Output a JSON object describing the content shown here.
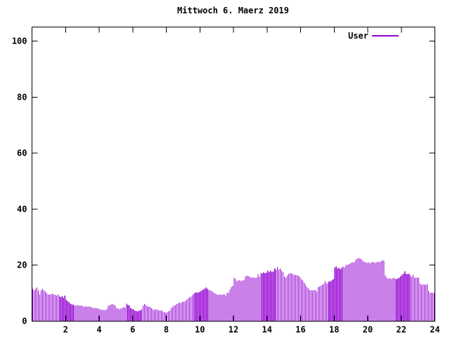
{
  "title": "Mittwoch 6. Maerz 2019",
  "legend": {
    "label": "User"
  },
  "chart_data": {
    "type": "bar",
    "style": "impulses",
    "title": "Mittwoch 6. Maerz 2019",
    "xlabel": "",
    "ylabel": "",
    "xlim": [
      0,
      24
    ],
    "ylim": [
      0,
      105
    ],
    "x_ticks": [
      2,
      4,
      6,
      8,
      10,
      12,
      14,
      16,
      18,
      20,
      22,
      24
    ],
    "y_ticks": [
      0,
      20,
      40,
      60,
      80,
      100
    ],
    "grid": false,
    "legend_position": "top-right",
    "background": "#ffffff",
    "border_color": "#000000",
    "text_color": "#000000",
    "series": [
      {
        "name": "User",
        "color": "#9400d3",
        "start_hour": 0,
        "interval_minutes": 5,
        "values": [
          11.5,
          11.0,
          11.5,
          12.0,
          11.0,
          9.5,
          11.0,
          11.5,
          11.0,
          10.5,
          10.0,
          9.5,
          9.5,
          9.6,
          9.8,
          9.5,
          9.4,
          9.2,
          9.5,
          9.0,
          8.7,
          8.9,
          8.4,
          9.2,
          7.6,
          7.2,
          6.8,
          6.3,
          6.0,
          5.9,
          5.7,
          5.5,
          5.8,
          5.6,
          5.5,
          5.7,
          5.3,
          5.2,
          5.4,
          5.1,
          5.3,
          5.2,
          5.0,
          4.8,
          4.7,
          4.8,
          4.6,
          4.5,
          4.2,
          4.0,
          4.1,
          3.9,
          4.0,
          4.2,
          5.5,
          5.7,
          6.0,
          6.2,
          5.9,
          5.5,
          4.7,
          4.5,
          4.3,
          4.5,
          4.8,
          5.0,
          4.9,
          6.3,
          5.9,
          5.6,
          4.7,
          4.4,
          4.3,
          3.8,
          3.6,
          3.5,
          3.7,
          3.9,
          4.2,
          5.5,
          6.1,
          5.8,
          5.4,
          5.2,
          5.1,
          4.7,
          4.2,
          4.0,
          4.2,
          4.1,
          3.9,
          3.8,
          3.9,
          3.5,
          3.2,
          3.0,
          3.2,
          3.5,
          3.8,
          4.7,
          5.1,
          5.5,
          5.8,
          6.1,
          6.4,
          6.7,
          6.5,
          6.9,
          7.0,
          7.2,
          7.6,
          8.1,
          8.5,
          8.8,
          9.3,
          9.7,
          10.1,
          10.3,
          10.1,
          10.4,
          10.6,
          11.0,
          11.3,
          11.6,
          12.0,
          11.5,
          11.2,
          11.0,
          10.8,
          10.4,
          10.0,
          9.8,
          9.5,
          9.4,
          9.6,
          9.4,
          9.5,
          9.6,
          9.2,
          10.1,
          10.1,
          11.3,
          12.2,
          12.6,
          15.5,
          15.1,
          14.3,
          14.5,
          14.7,
          14.3,
          14.5,
          14.7,
          15.9,
          16.3,
          16.2,
          15.9,
          15.5,
          15.7,
          15.5,
          15.4,
          15.5,
          16.8,
          15.9,
          17.2,
          17.0,
          17.4,
          17.2,
          17.3,
          18.0,
          17.6,
          18.0,
          17.6,
          17.8,
          18.8,
          18.4,
          19.3,
          18.4,
          18.8,
          18.0,
          17.6,
          15.9,
          15.5,
          16.3,
          16.8,
          17.2,
          17.0,
          16.8,
          16.5,
          16.6,
          16.4,
          16.2,
          15.8,
          15.0,
          14.5,
          13.8,
          13.0,
          12.2,
          11.8,
          11.2,
          11.0,
          11.0,
          11.0,
          11.1,
          10.5,
          12.2,
          12.4,
          12.6,
          13.0,
          13.4,
          14.3,
          13.4,
          13.8,
          14.3,
          14.1,
          14.7,
          15.1,
          19.2,
          19.6,
          18.8,
          19.0,
          18.6,
          19.0,
          19.5,
          19.2,
          20.0,
          20.1,
          20.4,
          20.6,
          20.9,
          21.0,
          21.1,
          21.9,
          22.3,
          22.6,
          22.4,
          22.0,
          21.5,
          21.2,
          21.0,
          20.8,
          21.0,
          20.7,
          20.9,
          21.2,
          21.0,
          20.8,
          21.0,
          21.3,
          21.1,
          21.4,
          21.8,
          21.5,
          16.3,
          15.5,
          15.2,
          15.4,
          15.1,
          15.3,
          15.5,
          15.2,
          15.0,
          15.3,
          15.6,
          16.0,
          16.5,
          16.9,
          17.8,
          16.9,
          16.8,
          16.9,
          16.3,
          15.9,
          16.6,
          15.5,
          15.5,
          15.6,
          15.5,
          13.4,
          13.0,
          13.1,
          13.0,
          13.0,
          13.1,
          10.9,
          10.1,
          10.1,
          10.1,
          10.0
        ]
      }
    ]
  }
}
